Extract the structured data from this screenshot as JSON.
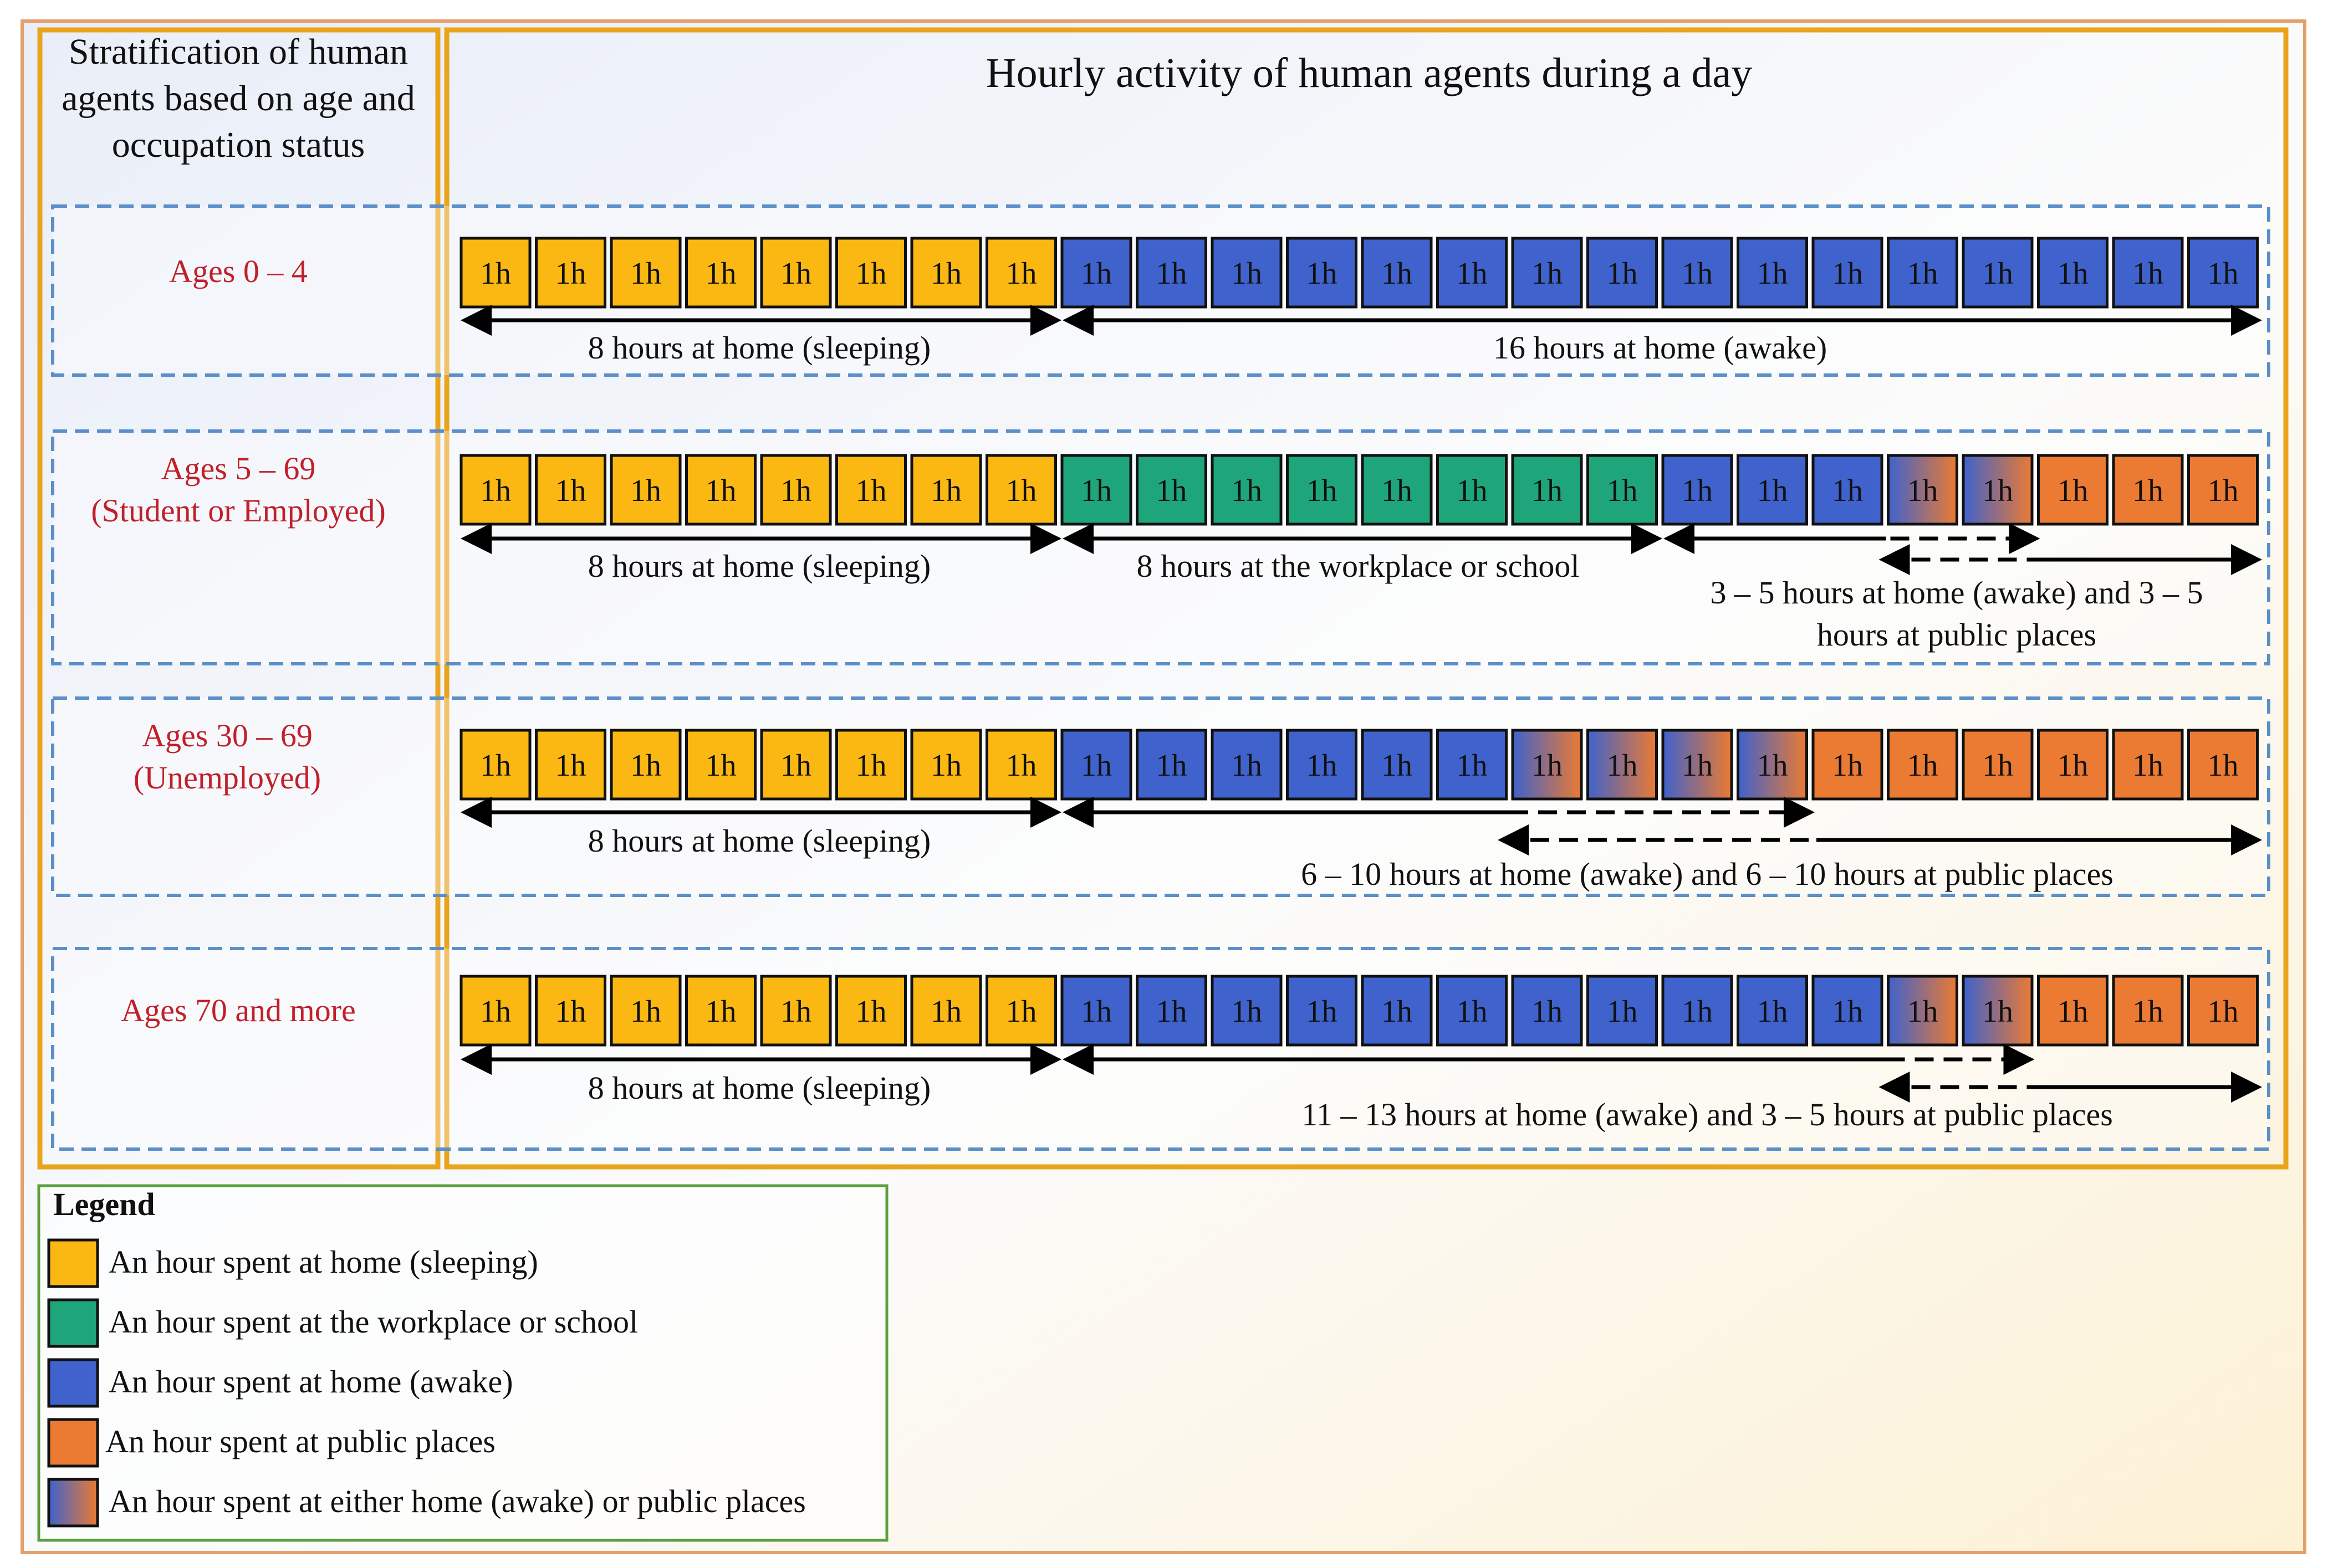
{
  "colors": {
    "sleep": "#fbb812",
    "work": "#1fa57a",
    "home_awake": "#3f62cc",
    "public": "#eb7a33",
    "either_from": "#3f62cc",
    "either_to": "#eb7a33",
    "outer_border": "#e2a06a",
    "header_border": "#e9a41c",
    "row_border": "#5b8fc9",
    "row_label": "#c0202a",
    "legend_border": "#5aa03c"
  },
  "header": {
    "left": "Stratification of human agents based on age and occupation status",
    "right": "Hourly activity of human agents during a day"
  },
  "hour_label": "1h",
  "rows": [
    {
      "label_lines": [
        "Ages 0 – 4"
      ],
      "hours": [
        "sleep",
        "sleep",
        "sleep",
        "sleep",
        "sleep",
        "sleep",
        "sleep",
        "sleep",
        "home_awake",
        "home_awake",
        "home_awake",
        "home_awake",
        "home_awake",
        "home_awake",
        "home_awake",
        "home_awake",
        "home_awake",
        "home_awake",
        "home_awake",
        "home_awake",
        "home_awake",
        "home_awake",
        "home_awake",
        "home_awake"
      ],
      "spans": [
        {
          "text": "8 hours at home (sleeping)"
        },
        {
          "text": "16 hours at home (awake)"
        }
      ]
    },
    {
      "label_lines": [
        "Ages 5 – 69",
        "(Student or Employed)"
      ],
      "hours": [
        "sleep",
        "sleep",
        "sleep",
        "sleep",
        "sleep",
        "sleep",
        "sleep",
        "sleep",
        "work",
        "work",
        "work",
        "work",
        "work",
        "work",
        "work",
        "work",
        "home_awake",
        "home_awake",
        "home_awake",
        "either",
        "either",
        "public",
        "public",
        "public"
      ],
      "spans": [
        {
          "text": "8 hours at home (sleeping)"
        },
        {
          "text": "8 hours at the workplace or school"
        },
        {
          "text": "3 – 5 hours at home (awake) and 3 – 5 hours at public places"
        }
      ]
    },
    {
      "label_lines": [
        "Ages 30 – 69",
        "(Unemployed)"
      ],
      "hours": [
        "sleep",
        "sleep",
        "sleep",
        "sleep",
        "sleep",
        "sleep",
        "sleep",
        "sleep",
        "home_awake",
        "home_awake",
        "home_awake",
        "home_awake",
        "home_awake",
        "home_awake",
        "either",
        "either",
        "either",
        "either",
        "public",
        "public",
        "public",
        "public",
        "public",
        "public"
      ],
      "spans": [
        {
          "text": "8 hours at home (sleeping)"
        },
        {
          "text": "6 – 10 hours at home (awake) and 6 – 10 hours at public places"
        }
      ]
    },
    {
      "label_lines": [
        "Ages 70 and more"
      ],
      "hours": [
        "sleep",
        "sleep",
        "sleep",
        "sleep",
        "sleep",
        "sleep",
        "sleep",
        "sleep",
        "home_awake",
        "home_awake",
        "home_awake",
        "home_awake",
        "home_awake",
        "home_awake",
        "home_awake",
        "home_awake",
        "home_awake",
        "home_awake",
        "home_awake",
        "either",
        "either",
        "public",
        "public",
        "public"
      ],
      "spans": [
        {
          "text": "8 hours at home (sleeping)"
        },
        {
          "text": "11 – 13 hours at home (awake) and 3 – 5 hours at public places"
        }
      ]
    }
  ],
  "legend": {
    "title": "Legend",
    "items": [
      {
        "key": "sleep",
        "text": "An hour spent at home (sleeping)"
      },
      {
        "key": "work",
        "text": "An hour spent at the workplace or school"
      },
      {
        "key": "home_awake",
        "text": "An hour spent at home (awake)"
      },
      {
        "key": "public",
        "text": "An hour spent at public places"
      },
      {
        "key": "either",
        "text": "An hour spent at either home (awake) or public places"
      }
    ]
  }
}
